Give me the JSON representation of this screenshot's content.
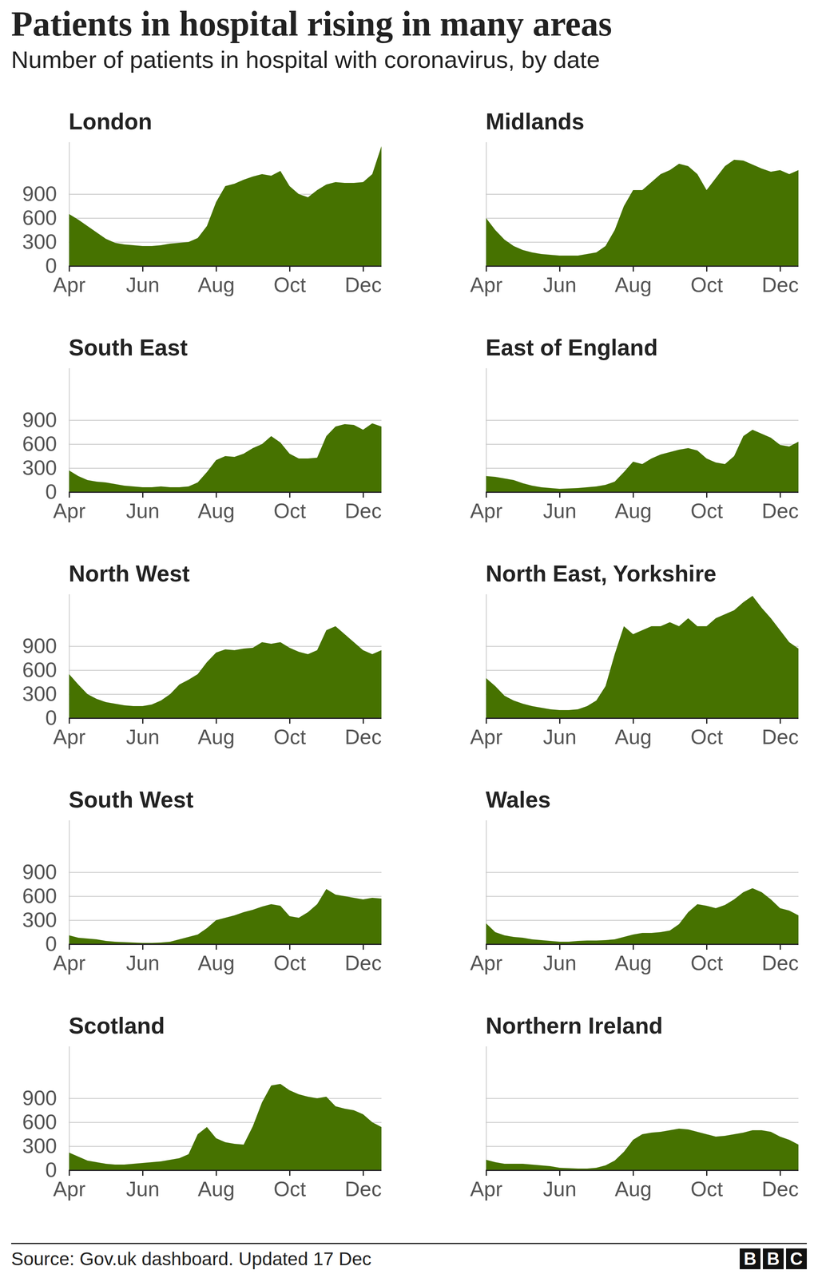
{
  "title": "Patients in hospital rising in many areas",
  "subtitle": "Number of patients in hospital with coronavirus, by date",
  "source": "Source: Gov.uk dashboard. Updated 17 Dec",
  "logo": "BBC",
  "chart_data": [
    {
      "type": "area",
      "title": "London",
      "categories": [
        "Apr",
        null,
        null,
        null,
        null,
        null,
        null,
        null,
        "Jun",
        null,
        null,
        null,
        null,
        null,
        null,
        null,
        "Aug",
        null,
        null,
        null,
        null,
        null,
        null,
        null,
        "Oct",
        null,
        null,
        null,
        null,
        null,
        null,
        null,
        "Dec",
        null,
        null
      ],
      "values": [
        650,
        580,
        500,
        420,
        340,
        290,
        270,
        260,
        250,
        250,
        260,
        280,
        290,
        300,
        350,
        500,
        800,
        1000,
        1030,
        1080,
        1120,
        1150,
        1130,
        1190,
        1000,
        900,
        860,
        950,
        1020,
        1050,
        1040,
        1040,
        1050,
        1150,
        1500
      ],
      "color": "#467200",
      "ylim": [
        0,
        1550
      ],
      "yticks": [
        0,
        300,
        600,
        900
      ],
      "grid": true,
      "tick_labels": true
    },
    {
      "type": "area",
      "title": "Midlands",
      "categories": [
        "Apr",
        null,
        null,
        null,
        null,
        null,
        null,
        null,
        "Jun",
        null,
        null,
        null,
        null,
        null,
        null,
        null,
        "Aug",
        null,
        null,
        null,
        null,
        null,
        null,
        null,
        "Oct",
        null,
        null,
        null,
        null,
        null,
        null,
        null,
        "Dec",
        null,
        null
      ],
      "values": [
        600,
        450,
        330,
        250,
        200,
        170,
        150,
        140,
        130,
        130,
        130,
        150,
        170,
        250,
        450,
        750,
        950,
        950,
        1050,
        1150,
        1200,
        1280,
        1250,
        1150,
        950,
        1100,
        1250,
        1330,
        1320,
        1270,
        1220,
        1180,
        1200,
        1150,
        1200
      ],
      "color": "#467200",
      "ylim": [
        0,
        1550
      ],
      "yticks": [
        0,
        300,
        600,
        900
      ],
      "grid": true,
      "tick_labels": "x"
    },
    {
      "type": "area",
      "title": "South East",
      "categories": [
        "Apr",
        null,
        null,
        null,
        null,
        null,
        null,
        null,
        "Jun",
        null,
        null,
        null,
        null,
        null,
        null,
        null,
        "Aug",
        null,
        null,
        null,
        null,
        null,
        null,
        null,
        "Oct",
        null,
        null,
        null,
        null,
        null,
        null,
        null,
        "Dec",
        null,
        null
      ],
      "values": [
        270,
        200,
        150,
        130,
        120,
        100,
        80,
        70,
        60,
        60,
        70,
        60,
        60,
        70,
        120,
        250,
        400,
        450,
        440,
        480,
        550,
        600,
        700,
        620,
        480,
        420,
        420,
        430,
        700,
        820,
        850,
        840,
        780,
        860,
        820
      ],
      "color": "#467200",
      "ylim": [
        0,
        1550
      ],
      "yticks": [
        0,
        300,
        600,
        900
      ],
      "grid": true,
      "tick_labels": true
    },
    {
      "type": "area",
      "title": "East of England",
      "categories": [
        "Apr",
        null,
        null,
        null,
        null,
        null,
        null,
        null,
        "Jun",
        null,
        null,
        null,
        null,
        null,
        null,
        null,
        "Aug",
        null,
        null,
        null,
        null,
        null,
        null,
        null,
        "Oct",
        null,
        null,
        null,
        null,
        null,
        null,
        null,
        "Dec",
        null,
        null
      ],
      "values": [
        200,
        190,
        170,
        150,
        110,
        80,
        60,
        50,
        40,
        45,
        50,
        60,
        70,
        90,
        130,
        250,
        380,
        350,
        420,
        470,
        500,
        530,
        550,
        520,
        420,
        370,
        350,
        450,
        700,
        780,
        730,
        680,
        590,
        570,
        630
      ],
      "color": "#467200",
      "ylim": [
        0,
        1550
      ],
      "yticks": [
        0,
        300,
        600,
        900
      ],
      "grid": true,
      "tick_labels": "x"
    },
    {
      "type": "area",
      "title": "North West",
      "categories": [
        "Apr",
        null,
        null,
        null,
        null,
        null,
        null,
        null,
        "Jun",
        null,
        null,
        null,
        null,
        null,
        null,
        null,
        "Aug",
        null,
        null,
        null,
        null,
        null,
        null,
        null,
        "Oct",
        null,
        null,
        null,
        null,
        null,
        null,
        null,
        "Dec",
        null,
        null
      ],
      "values": [
        550,
        420,
        300,
        240,
        200,
        180,
        160,
        150,
        150,
        170,
        220,
        300,
        420,
        480,
        550,
        700,
        820,
        860,
        850,
        870,
        880,
        950,
        930,
        950,
        880,
        830,
        800,
        850,
        1100,
        1150,
        1050,
        950,
        850,
        800,
        850
      ],
      "color": "#467200",
      "ylim": [
        0,
        1550
      ],
      "yticks": [
        0,
        300,
        600,
        900
      ],
      "grid": true,
      "tick_labels": true
    },
    {
      "type": "area",
      "title": "North East, Yorkshire",
      "categories": [
        "Apr",
        null,
        null,
        null,
        null,
        null,
        null,
        null,
        "Jun",
        null,
        null,
        null,
        null,
        null,
        null,
        null,
        "Aug",
        null,
        null,
        null,
        null,
        null,
        null,
        null,
        "Oct",
        null,
        null,
        null,
        null,
        null,
        null,
        null,
        "Dec",
        null,
        null
      ],
      "values": [
        500,
        400,
        280,
        220,
        180,
        150,
        130,
        110,
        100,
        100,
        110,
        150,
        220,
        400,
        800,
        1150,
        1050,
        1100,
        1150,
        1150,
        1200,
        1150,
        1250,
        1150,
        1150,
        1250,
        1300,
        1350,
        1450,
        1530,
        1380,
        1250,
        1100,
        950,
        870
      ],
      "color": "#467200",
      "ylim": [
        0,
        1550
      ],
      "yticks": [
        0,
        300,
        600,
        900
      ],
      "grid": true,
      "tick_labels": "x"
    },
    {
      "type": "area",
      "title": "South West",
      "categories": [
        "Apr",
        null,
        null,
        null,
        null,
        null,
        null,
        null,
        "Jun",
        null,
        null,
        null,
        null,
        null,
        null,
        null,
        "Aug",
        null,
        null,
        null,
        null,
        null,
        null,
        null,
        "Oct",
        null,
        null,
        null,
        null,
        null,
        null,
        null,
        "Dec",
        null,
        null
      ],
      "values": [
        110,
        80,
        70,
        60,
        40,
        30,
        25,
        20,
        15,
        15,
        20,
        30,
        60,
        90,
        120,
        200,
        300,
        330,
        360,
        400,
        430,
        470,
        500,
        480,
        350,
        330,
        400,
        500,
        690,
        620,
        600,
        580,
        560,
        580,
        570
      ],
      "color": "#467200",
      "ylim": [
        0,
        1550
      ],
      "yticks": [
        0,
        300,
        600,
        900
      ],
      "grid": true,
      "tick_labels": true
    },
    {
      "type": "area",
      "title": "Wales",
      "categories": [
        "Apr",
        null,
        null,
        null,
        null,
        null,
        null,
        null,
        "Jun",
        null,
        null,
        null,
        null,
        null,
        null,
        null,
        "Aug",
        null,
        null,
        null,
        null,
        null,
        null,
        null,
        "Oct",
        null,
        null,
        null,
        null,
        null,
        null,
        null,
        "Dec",
        null,
        null
      ],
      "values": [
        260,
        150,
        110,
        90,
        80,
        60,
        50,
        40,
        30,
        30,
        40,
        45,
        45,
        50,
        60,
        90,
        120,
        140,
        140,
        150,
        170,
        250,
        400,
        500,
        480,
        450,
        490,
        560,
        650,
        700,
        650,
        560,
        450,
        420,
        360
      ],
      "color": "#467200",
      "ylim": [
        0,
        1550
      ],
      "yticks": [
        0,
        300,
        600,
        900
      ],
      "grid": true,
      "tick_labels": "x"
    },
    {
      "type": "area",
      "title": "Scotland",
      "categories": [
        "Apr",
        null,
        null,
        null,
        null,
        null,
        null,
        null,
        "Jun",
        null,
        null,
        null,
        null,
        null,
        null,
        null,
        "Aug",
        null,
        null,
        null,
        null,
        null,
        null,
        null,
        "Oct",
        null,
        null,
        null,
        null,
        null,
        null,
        null,
        "Dec",
        null,
        null
      ],
      "values": [
        220,
        170,
        120,
        100,
        80,
        70,
        70,
        80,
        90,
        100,
        110,
        130,
        150,
        200,
        450,
        540,
        400,
        350,
        330,
        320,
        550,
        850,
        1060,
        1080,
        1000,
        950,
        920,
        900,
        920,
        800,
        770,
        750,
        700,
        600,
        540
      ],
      "color": "#467200",
      "ylim": [
        0,
        1550
      ],
      "yticks": [
        0,
        300,
        600,
        900
      ],
      "grid": true,
      "tick_labels": true
    },
    {
      "type": "area",
      "title": "Northern Ireland",
      "categories": [
        "Apr",
        null,
        null,
        null,
        null,
        null,
        null,
        null,
        "Jun",
        null,
        null,
        null,
        null,
        null,
        null,
        null,
        "Aug",
        null,
        null,
        null,
        null,
        null,
        null,
        null,
        "Oct",
        null,
        null,
        null,
        null,
        null,
        null,
        null,
        "Dec",
        null,
        null
      ],
      "values": [
        130,
        100,
        80,
        80,
        80,
        70,
        60,
        50,
        30,
        25,
        20,
        20,
        30,
        60,
        120,
        230,
        380,
        450,
        470,
        480,
        500,
        520,
        510,
        480,
        450,
        420,
        430,
        450,
        470,
        500,
        500,
        480,
        420,
        380,
        320
      ],
      "color": "#467200",
      "ylim": [
        0,
        1550
      ],
      "yticks": [
        0,
        300,
        600,
        900
      ],
      "grid": true,
      "tick_labels": "x"
    }
  ]
}
